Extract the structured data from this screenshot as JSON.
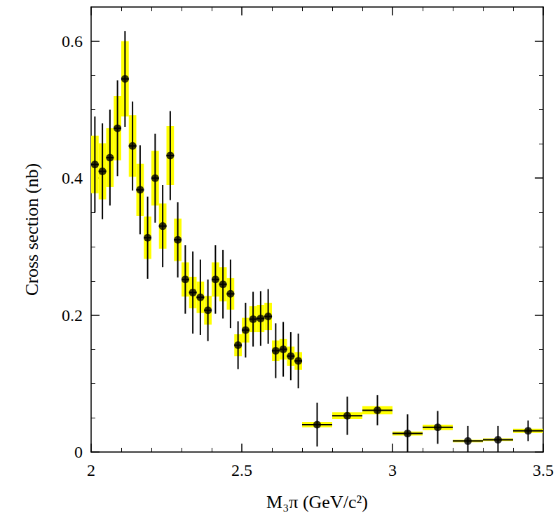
{
  "chart_data": {
    "type": "scatter",
    "x_label": "M₃π (GeV/c²)",
    "y_label": "Cross section (nb)",
    "color": "#000000",
    "marker": "circle",
    "x": [
      2.0125,
      2.0375,
      2.0625,
      2.0875,
      2.1125,
      2.1375,
      2.1625,
      2.1875,
      2.2125,
      2.2375,
      2.2625,
      2.2875,
      2.3125,
      2.3375,
      2.3625,
      2.3875,
      2.4125,
      2.4375,
      2.4625,
      2.4875,
      2.5125,
      2.5375,
      2.5625,
      2.5875,
      2.6125,
      2.6375,
      2.6625,
      2.6875,
      2.75,
      2.85,
      2.95,
      3.05,
      3.15,
      3.25,
      3.35,
      3.45
    ],
    "values": [
      0.42,
      0.41,
      0.43,
      0.473,
      0.545,
      0.447,
      0.383,
      0.313,
      0.4,
      0.33,
      0.433,
      0.31,
      0.252,
      0.233,
      0.226,
      0.207,
      0.252,
      0.245,
      0.231,
      0.156,
      0.178,
      0.194,
      0.195,
      0.198,
      0.148,
      0.15,
      0.14,
      0.133,
      0.04,
      0.053,
      0.061,
      0.027,
      0.036,
      0.016,
      0.018,
      0.031
    ],
    "error_bars": {
      "stat": {
        "color": "#000000",
        "values": [
          0.07,
          0.07,
          0.07,
          0.07,
          0.07,
          0.065,
          0.065,
          0.06,
          0.065,
          0.06,
          0.065,
          0.055,
          0.05,
          0.06,
          0.055,
          0.045,
          0.05,
          0.05,
          0.05,
          0.035,
          0.04,
          0.04,
          0.04,
          0.04,
          0.04,
          0.04,
          0.035,
          0.04,
          0.032,
          0.028,
          0.022,
          0.028,
          0.024,
          0.022,
          0.02,
          0.015
        ]
      },
      "sys": {
        "color": "#ffff00",
        "values": [
          0.042,
          0.041,
          0.043,
          0.047,
          0.055,
          0.045,
          0.038,
          0.031,
          0.04,
          0.033,
          0.043,
          0.031,
          0.025,
          0.023,
          0.023,
          0.021,
          0.025,
          0.025,
          0.023,
          0.016,
          0.018,
          0.019,
          0.02,
          0.02,
          0.015,
          0.015,
          0.014,
          0.013,
          0.004,
          0.005,
          0.006,
          0.003,
          0.004,
          0.002,
          0.002,
          0.003
        ]
      },
      "x": [
        0.0125,
        0.0125,
        0.0125,
        0.0125,
        0.0125,
        0.0125,
        0.0125,
        0.0125,
        0.0125,
        0.0125,
        0.0125,
        0.0125,
        0.0125,
        0.0125,
        0.0125,
        0.0125,
        0.0125,
        0.0125,
        0.0125,
        0.0125,
        0.0125,
        0.0125,
        0.0125,
        0.0125,
        0.0125,
        0.0125,
        0.0125,
        0.0125,
        0.05,
        0.05,
        0.05,
        0.05,
        0.05,
        0.05,
        0.05,
        0.05
      ]
    },
    "xlim": [
      2,
      3.5
    ],
    "xticks": [
      2,
      2.5,
      3,
      3.5
    ],
    "ylim": [
      0,
      0.65
    ],
    "yticks": [
      0,
      0.2,
      0.4,
      0.6
    ],
    "grid": false
  }
}
